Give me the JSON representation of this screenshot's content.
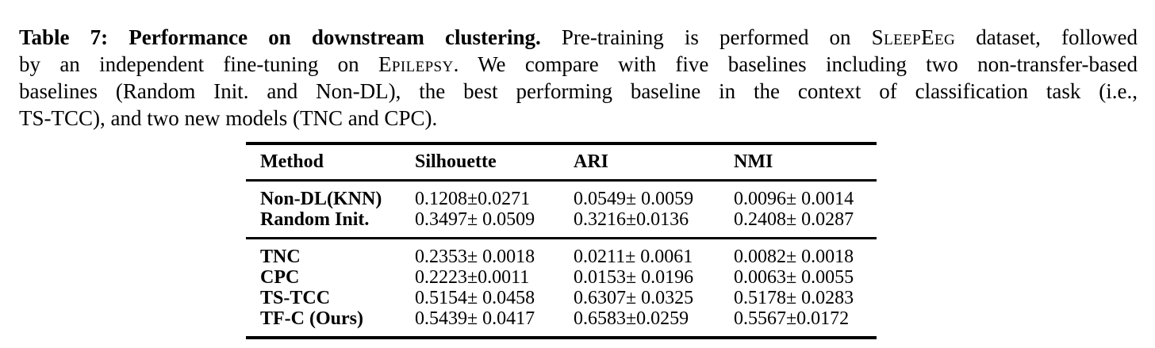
{
  "colors": {
    "text": "#000000",
    "background": "#ffffff",
    "rule": "#000000"
  },
  "caption": {
    "lines": [
      {
        "segments": [
          {
            "style": "bold",
            "text": "Table 7: Performance on downstream clustering."
          },
          {
            "style": "regular",
            "text": " Pre-training is performed on "
          },
          {
            "style": "smallcaps",
            "text": "SleepEeg"
          },
          {
            "style": "regular",
            "text": " dataset, followed"
          }
        ]
      },
      {
        "segments": [
          {
            "style": "regular",
            "text": "by an independent fine-tuning on "
          },
          {
            "style": "smallcaps",
            "text": "Epilepsy"
          },
          {
            "style": "regular",
            "text": ". We compare with five baselines including two non-transfer-based"
          }
        ]
      },
      {
        "segments": [
          {
            "style": "regular",
            "text": "baselines (Random Init. and Non-DL), the best performing baseline in the context of classification task (i.e.,"
          }
        ]
      },
      {
        "segments": [
          {
            "style": "regular",
            "text": "TS-TCC), and two new models (TNC and CPC)."
          }
        ]
      }
    ]
  },
  "table": {
    "headers": [
      "Method",
      "Silhouette",
      "ARI",
      "NMI"
    ],
    "groups": [
      {
        "rows": [
          {
            "method": "Non-DL(KNN)",
            "silhouette": "0.1208±0.0271",
            "ari": "0.0549± 0.0059",
            "nmi": "0.0096± 0.0014"
          },
          {
            "method": "Random Init.",
            "silhouette": "0.3497± 0.0509",
            "ari": "0.3216±0.0136",
            "nmi": "0.2408± 0.0287"
          }
        ]
      },
      {
        "rows": [
          {
            "method": "TNC",
            "silhouette": "0.2353± 0.0018",
            "ari": "0.0211± 0.0061",
            "nmi": "0.0082± 0.0018"
          },
          {
            "method": "CPC",
            "silhouette": "0.2223±0.0011",
            "ari": "0.0153± 0.0196",
            "nmi": "0.0063± 0.0055"
          },
          {
            "method": "TS-TCC",
            "silhouette": "0.5154± 0.0458",
            "ari": "0.6307± 0.0325",
            "nmi": "0.5178± 0.0283"
          },
          {
            "method": "TF-C (Ours)",
            "silhouette": "0.5439± 0.0417",
            "ari": "0.6583±0.0259",
            "nmi": "0.5567±0.0172"
          }
        ]
      }
    ]
  }
}
